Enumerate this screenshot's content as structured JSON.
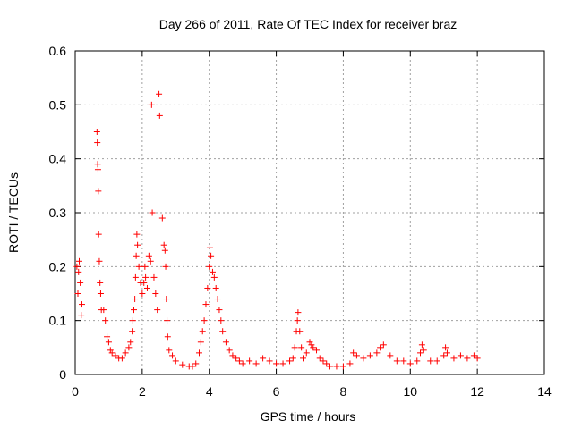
{
  "chart_data": {
    "type": "scatter",
    "title": "Day 266 of 2011, Rate Of TEC Index for receiver braz",
    "xlabel": "GPS time / hours",
    "ylabel": "ROTI / TECUs",
    "xlim": [
      0,
      14
    ],
    "ylim": [
      0,
      0.6
    ],
    "x_ticks": [
      "0",
      "2",
      "4",
      "6",
      "8",
      "10",
      "12",
      "14"
    ],
    "y_ticks": [
      "0",
      "0.1",
      "0.2",
      "0.3",
      "0.4",
      "0.5",
      "0.6"
    ],
    "grid": true,
    "legend": "none",
    "marker": "+",
    "series": [
      {
        "color": "#ff0000",
        "points": [
          [
            0.05,
            0.2
          ],
          [
            0.08,
            0.15
          ],
          [
            0.1,
            0.19
          ],
          [
            0.12,
            0.21
          ],
          [
            0.15,
            0.17
          ],
          [
            0.18,
            0.11
          ],
          [
            0.2,
            0.13
          ],
          [
            0.65,
            0.45
          ],
          [
            0.66,
            0.43
          ],
          [
            0.67,
            0.39
          ],
          [
            0.68,
            0.38
          ],
          [
            0.69,
            0.34
          ],
          [
            0.7,
            0.26
          ],
          [
            0.72,
            0.21
          ],
          [
            0.74,
            0.17
          ],
          [
            0.76,
            0.15
          ],
          [
            0.78,
            0.12
          ],
          [
            0.85,
            0.12
          ],
          [
            0.9,
            0.1
          ],
          [
            0.95,
            0.07
          ],
          [
            1.0,
            0.06
          ],
          [
            1.05,
            0.045
          ],
          [
            1.1,
            0.04
          ],
          [
            1.2,
            0.035
          ],
          [
            1.3,
            0.03
          ],
          [
            1.4,
            0.03
          ],
          [
            1.5,
            0.04
          ],
          [
            1.6,
            0.05
          ],
          [
            1.65,
            0.06
          ],
          [
            1.7,
            0.08
          ],
          [
            1.72,
            0.1
          ],
          [
            1.75,
            0.12
          ],
          [
            1.78,
            0.14
          ],
          [
            1.8,
            0.18
          ],
          [
            1.82,
            0.22
          ],
          [
            1.84,
            0.26
          ],
          [
            1.86,
            0.24
          ],
          [
            1.9,
            0.2
          ],
          [
            1.95,
            0.17
          ],
          [
            2.0,
            0.15
          ],
          [
            2.05,
            0.17
          ],
          [
            2.08,
            0.2
          ],
          [
            2.1,
            0.18
          ],
          [
            2.15,
            0.16
          ],
          [
            2.2,
            0.22
          ],
          [
            2.25,
            0.21
          ],
          [
            2.28,
            0.5
          ],
          [
            2.3,
            0.3
          ],
          [
            2.35,
            0.18
          ],
          [
            2.4,
            0.15
          ],
          [
            2.45,
            0.12
          ],
          [
            2.5,
            0.52
          ],
          [
            2.52,
            0.48
          ],
          [
            2.6,
            0.29
          ],
          [
            2.65,
            0.24
          ],
          [
            2.68,
            0.23
          ],
          [
            2.7,
            0.2
          ],
          [
            2.72,
            0.14
          ],
          [
            2.74,
            0.1
          ],
          [
            2.76,
            0.07
          ],
          [
            2.8,
            0.045
          ],
          [
            2.9,
            0.035
          ],
          [
            3.0,
            0.025
          ],
          [
            3.2,
            0.018
          ],
          [
            3.4,
            0.015
          ],
          [
            3.5,
            0.015
          ],
          [
            3.6,
            0.02
          ],
          [
            3.7,
            0.04
          ],
          [
            3.75,
            0.06
          ],
          [
            3.8,
            0.08
          ],
          [
            3.85,
            0.1
          ],
          [
            3.9,
            0.13
          ],
          [
            3.95,
            0.16
          ],
          [
            4.0,
            0.2
          ],
          [
            4.02,
            0.235
          ],
          [
            4.05,
            0.22
          ],
          [
            4.1,
            0.19
          ],
          [
            4.15,
            0.18
          ],
          [
            4.2,
            0.16
          ],
          [
            4.25,
            0.14
          ],
          [
            4.3,
            0.12
          ],
          [
            4.35,
            0.1
          ],
          [
            4.4,
            0.08
          ],
          [
            4.5,
            0.06
          ],
          [
            4.6,
            0.045
          ],
          [
            4.7,
            0.035
          ],
          [
            4.8,
            0.03
          ],
          [
            4.9,
            0.025
          ],
          [
            5.0,
            0.02
          ],
          [
            5.2,
            0.025
          ],
          [
            5.4,
            0.02
          ],
          [
            5.6,
            0.03
          ],
          [
            5.8,
            0.025
          ],
          [
            6.0,
            0.02
          ],
          [
            6.2,
            0.02
          ],
          [
            6.4,
            0.025
          ],
          [
            6.5,
            0.03
          ],
          [
            6.55,
            0.05
          ],
          [
            6.6,
            0.08
          ],
          [
            6.63,
            0.1
          ],
          [
            6.65,
            0.115
          ],
          [
            6.7,
            0.08
          ],
          [
            6.75,
            0.05
          ],
          [
            6.8,
            0.03
          ],
          [
            6.9,
            0.04
          ],
          [
            7.0,
            0.06
          ],
          [
            7.05,
            0.055
          ],
          [
            7.1,
            0.05
          ],
          [
            7.2,
            0.045
          ],
          [
            7.3,
            0.03
          ],
          [
            7.4,
            0.025
          ],
          [
            7.5,
            0.02
          ],
          [
            7.6,
            0.015
          ],
          [
            7.8,
            0.015
          ],
          [
            8.0,
            0.015
          ],
          [
            8.2,
            0.02
          ],
          [
            8.3,
            0.04
          ],
          [
            8.4,
            0.035
          ],
          [
            8.6,
            0.03
          ],
          [
            8.8,
            0.035
          ],
          [
            9.0,
            0.04
          ],
          [
            9.1,
            0.05
          ],
          [
            9.2,
            0.055
          ],
          [
            9.4,
            0.035
          ],
          [
            9.6,
            0.025
          ],
          [
            9.8,
            0.025
          ],
          [
            10.0,
            0.02
          ],
          [
            10.2,
            0.025
          ],
          [
            10.3,
            0.04
          ],
          [
            10.35,
            0.055
          ],
          [
            10.4,
            0.045
          ],
          [
            10.6,
            0.025
          ],
          [
            10.8,
            0.025
          ],
          [
            11.0,
            0.035
          ],
          [
            11.05,
            0.05
          ],
          [
            11.1,
            0.04
          ],
          [
            11.3,
            0.03
          ],
          [
            11.5,
            0.035
          ],
          [
            11.7,
            0.03
          ],
          [
            11.9,
            0.035
          ],
          [
            12.0,
            0.03
          ]
        ]
      }
    ]
  }
}
